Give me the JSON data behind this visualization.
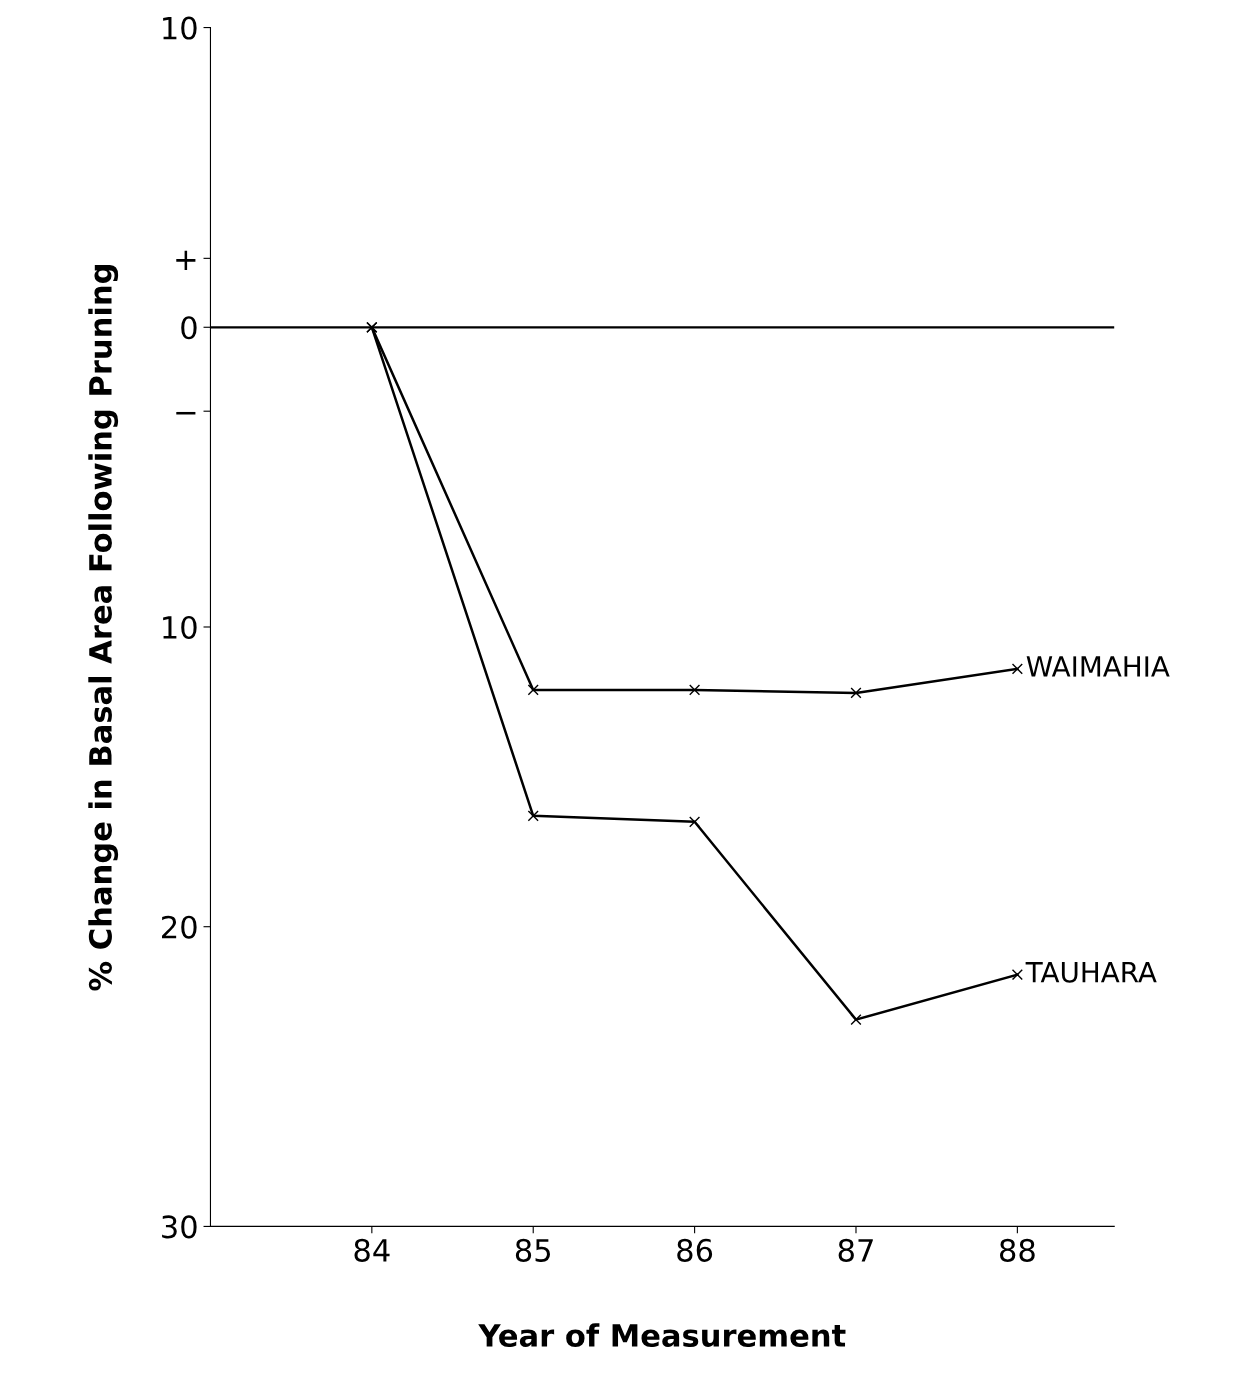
{
  "chart_data": {
    "type": "line",
    "xlabel": "Year of Measurement",
    "ylabel": "% Change in Basal Area Following Pruning",
    "x": [
      84,
      85,
      86,
      87,
      88
    ],
    "series": [
      {
        "name": "WAIMAHIA",
        "color": "#000000",
        "values": [
          0,
          -12.1,
          -12.1,
          -12.2,
          -11.4
        ]
      },
      {
        "name": "TAUHARA",
        "color": "#000000",
        "values": [
          0,
          -16.3,
          -16.5,
          -23.1,
          -21.6
        ]
      }
    ],
    "xlim": [
      83,
      88.6
    ],
    "xticks": [
      84,
      85,
      86,
      87,
      88
    ],
    "ylim": [
      -30,
      10
    ],
    "yticks": [
      {
        "value": -30,
        "label": "30"
      },
      {
        "value": -20,
        "label": "20"
      },
      {
        "value": -10,
        "label": "10"
      },
      {
        "value": -2.8,
        "label": "−"
      },
      0,
      {
        "value": 2.3,
        "label": "+"
      },
      10
    ],
    "ref_lines": [
      {
        "axis": "y",
        "value": 0,
        "color": "#000000",
        "line_style": "solid"
      }
    ],
    "marker": "cross",
    "line_style": "solid",
    "grid": false,
    "legend": false
  }
}
